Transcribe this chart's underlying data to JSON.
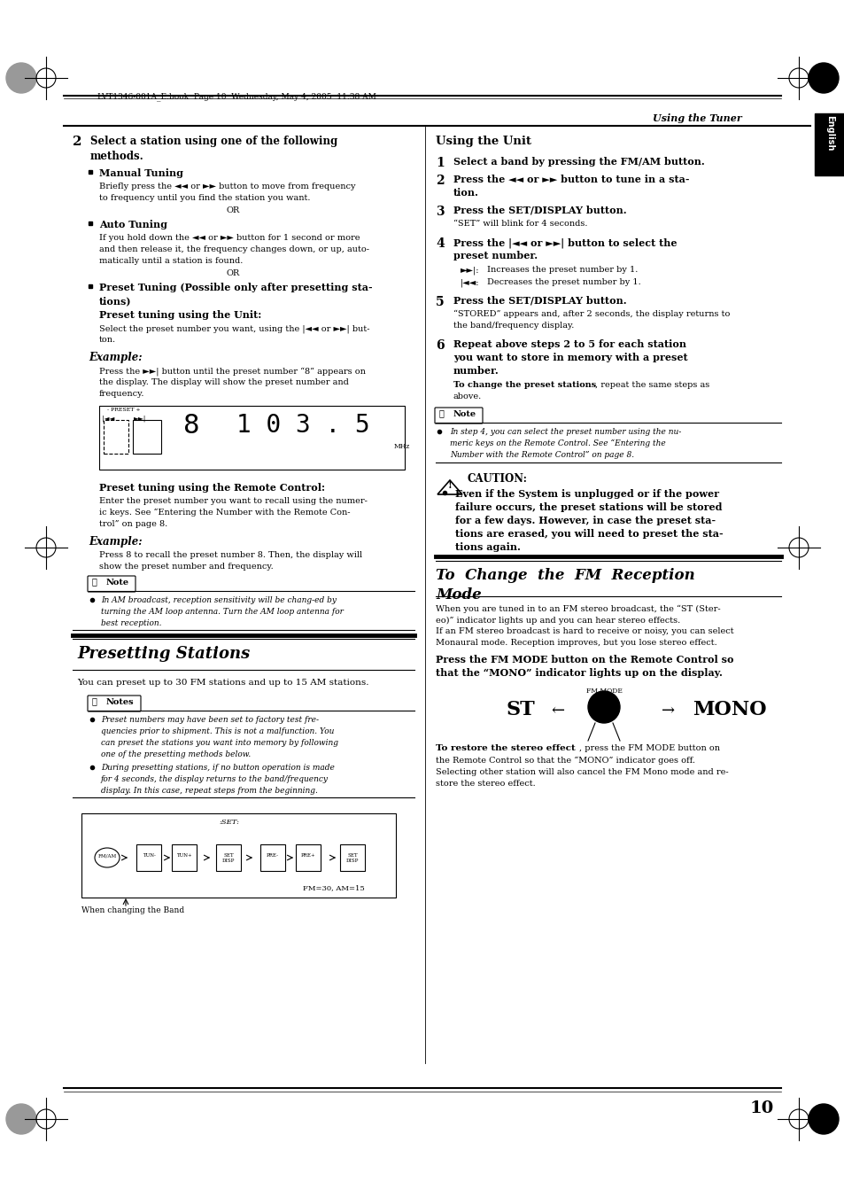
{
  "page_bg": "#ffffff",
  "header_text": "LVT1346-001A_E.book  Page 10  Wednesday, May 4, 2005  11:38 AM",
  "section_header_right": "Using the Tuner",
  "tab_text": "English",
  "page_number": "10"
}
